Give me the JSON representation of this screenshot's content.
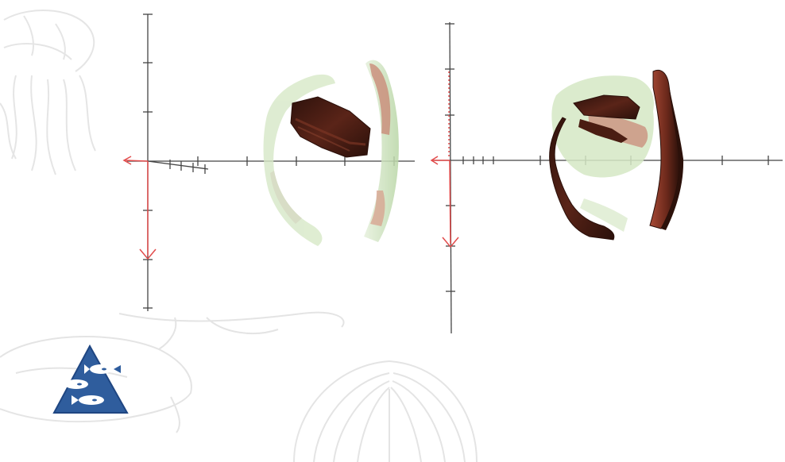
{
  "slide": {
    "logo_name": "fish-triangle-logo",
    "background_sketches": [
      "jellyfish-sketch",
      "fish-sketch",
      "scallop-shell-sketch"
    ]
  },
  "colors": {
    "axis": "#444444",
    "axis_arrow": "#e24b4b",
    "solid_body_dark": "#3a1710",
    "solid_body_mid": "#6b2c1e",
    "solid_body_light": "#a2553d",
    "translucent_green": "#c9dfb6",
    "translucent_pink": "#d9a08d",
    "logo_blue": "#2f5d9d",
    "sketch_gray": "#d6d6d6"
  },
  "panels": [
    {
      "id": "left",
      "description_keys": [
        "translucent-arc-left",
        "solid-block",
        "translucent-arc-right"
      ]
    },
    {
      "id": "right",
      "description_keys": [
        "solid-arc-left",
        "solid-arc-right",
        "translucent-core"
      ]
    }
  ]
}
